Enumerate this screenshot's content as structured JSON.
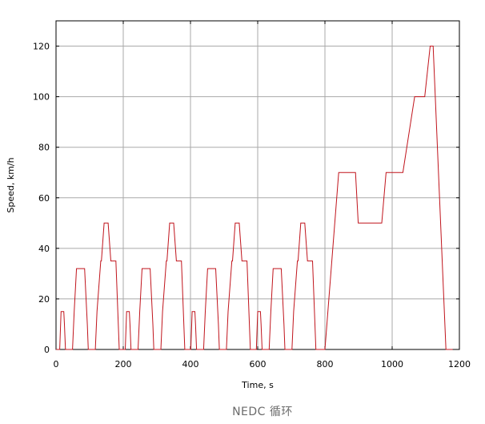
{
  "caption": "NEDC 循环",
  "chart_data": {
    "type": "line",
    "title": "",
    "xlabel": "Time, s",
    "ylabel": "Speed, km/h",
    "xlim": [
      0,
      1200
    ],
    "ylim": [
      0,
      130
    ],
    "xticks": [
      0,
      200,
      400,
      600,
      800,
      1000,
      1200
    ],
    "yticks": [
      0,
      20,
      40,
      60,
      80,
      100,
      120
    ],
    "grid": true,
    "line_color": "#c0141c",
    "series": [
      {
        "x": [
          0,
          11,
          15,
          23,
          25,
          28,
          49,
          54,
          61,
          85,
          93,
          96,
          117,
          122,
          133,
          135,
          143,
          155,
          163,
          176,
          178,
          188,
          195,
          206,
          210,
          218,
          220,
          223,
          244,
          249,
          256,
          280,
          288,
          291,
          312,
          317,
          328,
          330,
          338,
          350,
          358,
          371,
          373,
          383,
          390,
          401,
          405,
          413,
          415,
          418,
          439,
          444,
          451,
          475,
          483,
          486,
          507,
          512,
          523,
          525,
          533,
          545,
          553,
          566,
          568,
          578,
          585,
          596,
          600,
          608,
          610,
          613,
          634,
          639,
          646,
          670,
          678,
          681,
          702,
          707,
          718,
          720,
          728,
          740,
          748,
          761,
          763,
          773,
          780,
          800,
          841,
          891,
          899,
          969,
          982,
          1032,
          1067,
          1097,
          1113,
          1122,
          1160,
          1180
        ],
        "y": [
          0,
          0,
          15,
          15,
          10,
          0,
          0,
          15,
          32,
          32,
          10,
          0,
          0,
          15,
          35,
          35,
          50,
          50,
          35,
          35,
          35,
          0,
          0,
          0,
          15,
          15,
          10,
          0,
          0,
          15,
          32,
          32,
          10,
          0,
          0,
          15,
          35,
          35,
          50,
          50,
          35,
          35,
          35,
          0,
          0,
          0,
          15,
          15,
          10,
          0,
          0,
          15,
          32,
          32,
          10,
          0,
          0,
          15,
          35,
          35,
          50,
          50,
          35,
          35,
          35,
          0,
          0,
          0,
          15,
          15,
          10,
          0,
          0,
          15,
          32,
          32,
          10,
          0,
          0,
          15,
          35,
          35,
          50,
          50,
          35,
          35,
          35,
          0,
          0,
          0,
          70,
          70,
          50,
          50,
          70,
          70,
          100,
          100,
          120,
          120,
          0,
          0
        ]
      }
    ]
  }
}
